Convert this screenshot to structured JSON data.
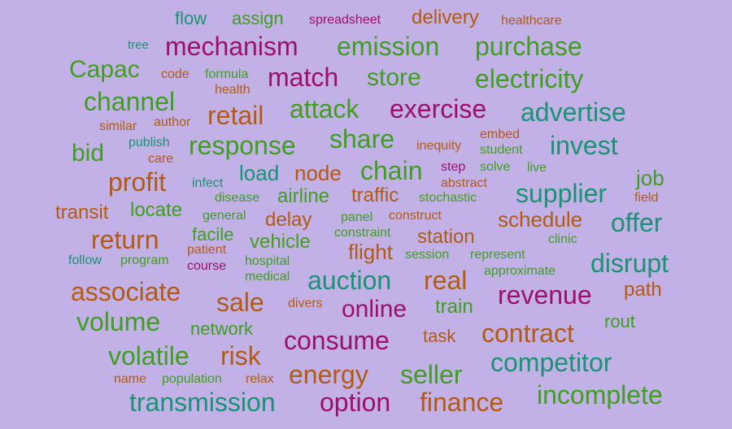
{
  "colors": {
    "background": "#c2b1e6",
    "green": "#3f9e1f",
    "teal": "#1a9273",
    "magenta": "#9c0f6a",
    "orange": "#b25a14"
  },
  "words": [
    {
      "text": "flow",
      "color": "teal"
    },
    {
      "text": "assign",
      "color": "green"
    },
    {
      "text": "spreadsheet",
      "color": "magenta"
    },
    {
      "text": "delivery",
      "color": "orange"
    },
    {
      "text": "healthcare",
      "color": "orange"
    },
    {
      "text": "tree",
      "color": "teal"
    },
    {
      "text": "mechanism",
      "color": "magenta"
    },
    {
      "text": "emission",
      "color": "green"
    },
    {
      "text": "purchase",
      "color": "green"
    },
    {
      "text": "Capac",
      "color": "green"
    },
    {
      "text": "code",
      "color": "orange"
    },
    {
      "text": "formula",
      "color": "green"
    },
    {
      "text": "health",
      "color": "orange"
    },
    {
      "text": "match",
      "color": "magenta"
    },
    {
      "text": "store",
      "color": "green"
    },
    {
      "text": "electricity",
      "color": "green"
    },
    {
      "text": "channel",
      "color": "green"
    },
    {
      "text": "retail",
      "color": "orange"
    },
    {
      "text": "attack",
      "color": "green"
    },
    {
      "text": "exercise",
      "color": "magenta"
    },
    {
      "text": "advertise",
      "color": "teal"
    },
    {
      "text": "similar",
      "color": "orange"
    },
    {
      "text": "author",
      "color": "orange"
    },
    {
      "text": "embed",
      "color": "orange"
    },
    {
      "text": "share",
      "color": "green"
    },
    {
      "text": "bid",
      "color": "green"
    },
    {
      "text": "publish",
      "color": "teal"
    },
    {
      "text": "care",
      "color": "orange"
    },
    {
      "text": "response",
      "color": "green"
    },
    {
      "text": "inequity",
      "color": "orange"
    },
    {
      "text": "student",
      "color": "green"
    },
    {
      "text": "invest",
      "color": "teal"
    },
    {
      "text": "profit",
      "color": "orange"
    },
    {
      "text": "infect",
      "color": "teal"
    },
    {
      "text": "load",
      "color": "teal"
    },
    {
      "text": "node",
      "color": "orange"
    },
    {
      "text": "chain",
      "color": "green"
    },
    {
      "text": "step",
      "color": "magenta"
    },
    {
      "text": "solve",
      "color": "green"
    },
    {
      "text": "live",
      "color": "green"
    },
    {
      "text": "job",
      "color": "green"
    },
    {
      "text": "abstract",
      "color": "orange"
    },
    {
      "text": "transit",
      "color": "orange"
    },
    {
      "text": "locate",
      "color": "green"
    },
    {
      "text": "disease",
      "color": "green"
    },
    {
      "text": "airline",
      "color": "green"
    },
    {
      "text": "traffic",
      "color": "orange"
    },
    {
      "text": "stochastic",
      "color": "green"
    },
    {
      "text": "supplier",
      "color": "teal"
    },
    {
      "text": "field",
      "color": "orange"
    },
    {
      "text": "general",
      "color": "green"
    },
    {
      "text": "delay",
      "color": "orange"
    },
    {
      "text": "panel",
      "color": "green"
    },
    {
      "text": "construct",
      "color": "orange"
    },
    {
      "text": "schedule",
      "color": "orange"
    },
    {
      "text": "offer",
      "color": "teal"
    },
    {
      "text": "return",
      "color": "orange"
    },
    {
      "text": "facile",
      "color": "green"
    },
    {
      "text": "vehicle",
      "color": "green"
    },
    {
      "text": "constraint",
      "color": "green"
    },
    {
      "text": "station",
      "color": "orange"
    },
    {
      "text": "clinic",
      "color": "green"
    },
    {
      "text": "patient",
      "color": "orange"
    },
    {
      "text": "flight",
      "color": "orange"
    },
    {
      "text": "session",
      "color": "green"
    },
    {
      "text": "represent",
      "color": "green"
    },
    {
      "text": "follow",
      "color": "teal"
    },
    {
      "text": "program",
      "color": "green"
    },
    {
      "text": "hospital",
      "color": "green"
    },
    {
      "text": "course",
      "color": "magenta"
    },
    {
      "text": "disrupt",
      "color": "teal"
    },
    {
      "text": "approximate",
      "color": "green"
    },
    {
      "text": "medical",
      "color": "green"
    },
    {
      "text": "auction",
      "color": "teal"
    },
    {
      "text": "real",
      "color": "orange"
    },
    {
      "text": "associate",
      "color": "orange"
    },
    {
      "text": "path",
      "color": "orange"
    },
    {
      "text": "revenue",
      "color": "magenta"
    },
    {
      "text": "sale",
      "color": "orange"
    },
    {
      "text": "divers",
      "color": "orange"
    },
    {
      "text": "online",
      "color": "magenta"
    },
    {
      "text": "train",
      "color": "green"
    },
    {
      "text": "volume",
      "color": "green"
    },
    {
      "text": "rout",
      "color": "green"
    },
    {
      "text": "network",
      "color": "green"
    },
    {
      "text": "contract",
      "color": "orange"
    },
    {
      "text": "consume",
      "color": "magenta"
    },
    {
      "text": "task",
      "color": "orange"
    },
    {
      "text": "volatile",
      "color": "green"
    },
    {
      "text": "risk",
      "color": "orange"
    },
    {
      "text": "competitor",
      "color": "teal"
    },
    {
      "text": "energy",
      "color": "orange"
    },
    {
      "text": "seller",
      "color": "green"
    },
    {
      "text": "name",
      "color": "orange"
    },
    {
      "text": "population",
      "color": "green"
    },
    {
      "text": "relax",
      "color": "orange"
    },
    {
      "text": "incomplete",
      "color": "green"
    },
    {
      "text": "transmission",
      "color": "teal"
    },
    {
      "text": "option",
      "color": "magenta"
    },
    {
      "text": "finance",
      "color": "orange"
    }
  ]
}
